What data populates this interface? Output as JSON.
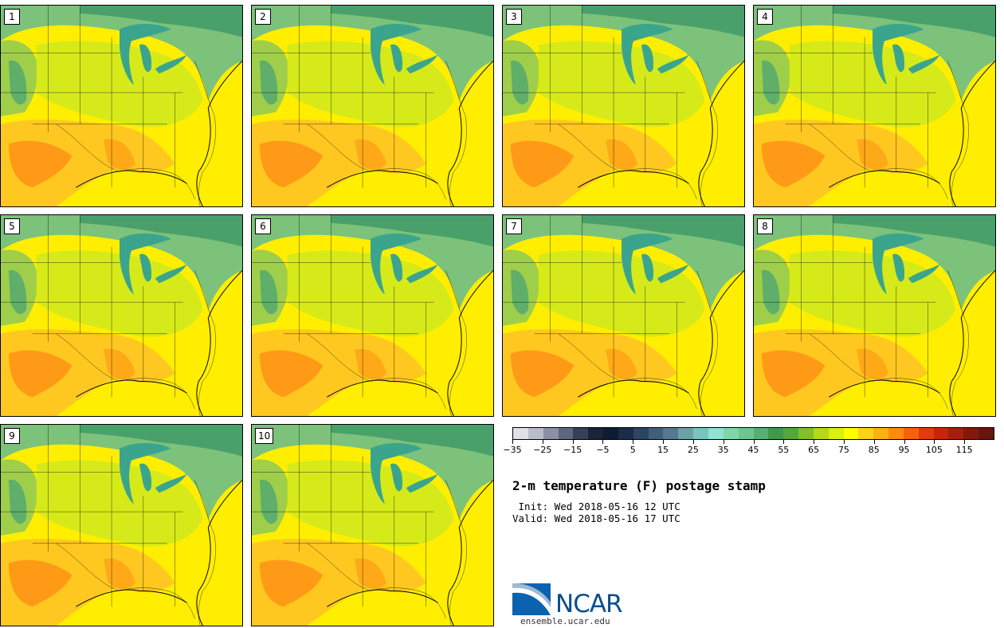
{
  "figure": {
    "title": "2-m temperature (F) postage stamp",
    "init": " Init: Wed 2018-05-16 12 UTC",
    "valid": "Valid: Wed 2018-05-16 17 UTC"
  },
  "members": [
    "1",
    "2",
    "3",
    "4",
    "5",
    "6",
    "7",
    "8",
    "9",
    "10"
  ],
  "colorbar": {
    "colors": [
      "#dfe1e5",
      "#b9bdcb",
      "#8b90a6",
      "#5f6680",
      "#373f5a",
      "#1b2339",
      "#0d1b33",
      "#1a2c48",
      "#2b4562",
      "#3f5f7d",
      "#55798f",
      "#6aa2a8",
      "#7cc3bd",
      "#8ee3d1",
      "#7fd7a8",
      "#6cc68f",
      "#54b174",
      "#3f9a4d",
      "#54a83a",
      "#82bf2a",
      "#b4d91a",
      "#dcef12",
      "#ffff00",
      "#ffd21a",
      "#ffb014",
      "#ff8a0e",
      "#f4630c",
      "#e03d0a",
      "#c42809",
      "#a3200b",
      "#85180c",
      "#681410"
    ],
    "tick_labels": [
      "−35",
      "−25",
      "−15",
      "−5",
      "5",
      "15",
      "25",
      "35",
      "45",
      "55",
      "65",
      "75",
      "85",
      "95",
      "105",
      "115"
    ]
  },
  "logo": {
    "name": "NCAR",
    "url": "ensemble.ucar.edu"
  }
}
